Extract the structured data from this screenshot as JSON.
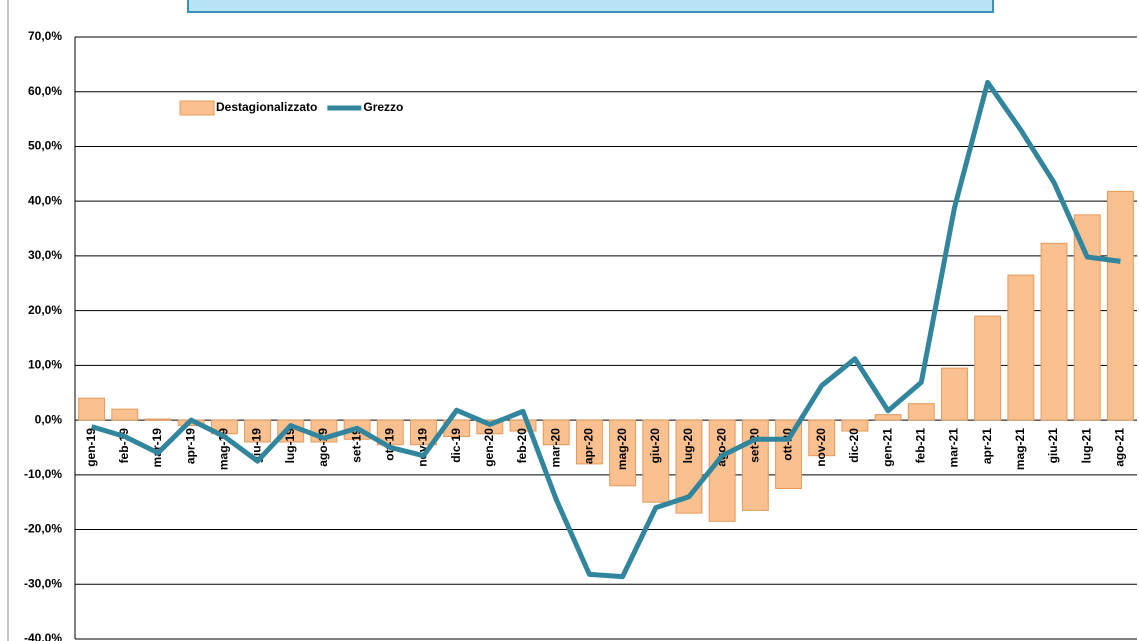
{
  "chart_data": {
    "type": "bar_line",
    "categories": [
      "gen-19",
      "feb-19",
      "mar-19",
      "apr-19",
      "mag-19",
      "giu-19",
      "lug-19",
      "ago-19",
      "set-19",
      "ott-19",
      "nov-19",
      "dic-19",
      "gen-20",
      "feb-20",
      "mar-20",
      "apr-20",
      "mag-20",
      "giu-20",
      "lug-20",
      "ago-20",
      "set-20",
      "ott-20",
      "nov-20",
      "dic-20",
      "gen-21",
      "feb-21",
      "mar-21",
      "apr-21",
      "mag-21",
      "giu-21",
      "lug-21",
      "ago-21"
    ],
    "series": [
      {
        "name": "Destagionalizzato",
        "type": "bar",
        "color": "#FAC090",
        "stroke": "#E39A5C",
        "values": [
          4.0,
          2.0,
          0.2,
          -1.0,
          -2.5,
          -4.0,
          -4.0,
          -4.0,
          -3.5,
          -4.5,
          -4.5,
          -3.0,
          -2.5,
          -2.0,
          -4.5,
          -8.0,
          -12.0,
          -15.0,
          -17.0,
          -18.5,
          -16.5,
          -12.5,
          -6.5,
          -2.0,
          1.0,
          3.0,
          9.5,
          19.0,
          26.5,
          32.3,
          37.5,
          41.8
        ]
      },
      {
        "name": "Grezzo",
        "type": "line",
        "color": "#31859C",
        "values": [
          -1.2,
          -3.0,
          -6.0,
          0.0,
          -3.0,
          -7.5,
          -1.0,
          -3.3,
          -1.5,
          -5.0,
          -6.5,
          1.8,
          -0.8,
          1.6,
          -14.5,
          -28.2,
          -28.6,
          -16.0,
          -14.0,
          -6.5,
          -3.5,
          -3.5,
          6.3,
          11.2,
          1.7,
          6.9,
          38.8,
          61.7,
          53.0,
          43.4,
          29.8,
          29.0
        ]
      }
    ],
    "ylim": [
      -40,
      70
    ],
    "yticks": [
      {
        "value": -40,
        "label": "-40,0%"
      },
      {
        "value": -30,
        "label": "-30,0%"
      },
      {
        "value": -20,
        "label": "-20,0%"
      },
      {
        "value": -10,
        "label": "-10,0%"
      },
      {
        "value": 0,
        "label": "0,0%"
      },
      {
        "value": 10,
        "label": "10,0%"
      },
      {
        "value": 20,
        "label": "20,0%"
      },
      {
        "value": 30,
        "label": "30,0%"
      },
      {
        "value": 40,
        "label": "40,0%"
      },
      {
        "value": 50,
        "label": "50,0%"
      },
      {
        "value": 60,
        "label": "60,0%"
      },
      {
        "value": 70,
        "label": "70,0%"
      }
    ],
    "grid": true,
    "legend": "top-left"
  }
}
